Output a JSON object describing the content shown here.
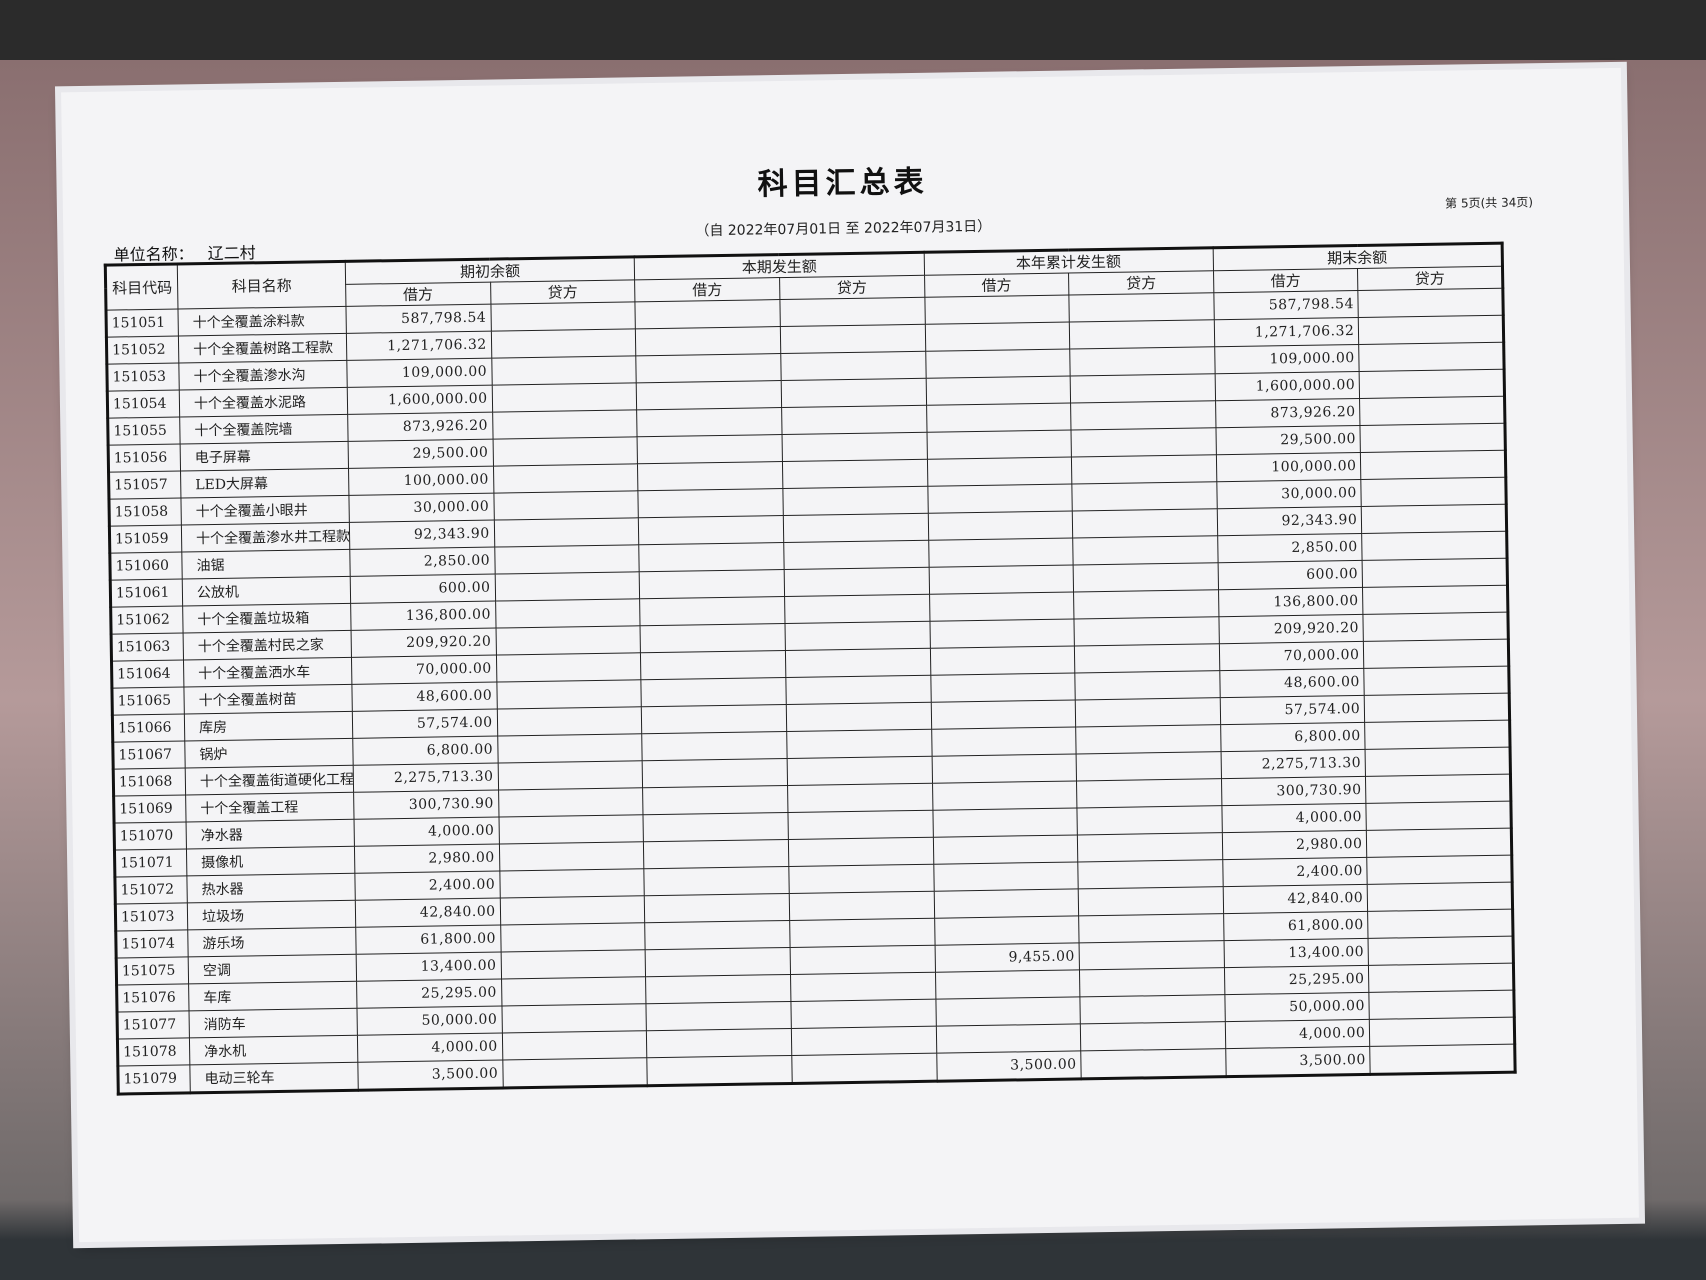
{
  "header": {
    "title": "科目汇总表",
    "unit_label": "单位名称：",
    "unit": "辽二村",
    "period": "（自 2022年07月01日 至 2022年07月31日）",
    "page": "第 5页(共 34页)"
  },
  "table": {
    "columns": [
      "科目代码",
      "科目名称"
    ],
    "groups": [
      "期初余额",
      "本期发生额",
      "本年累计发生额",
      "期末余额"
    ],
    "subcolumns": [
      "借方",
      "贷方"
    ],
    "rows": [
      [
        "151051",
        "十个全覆盖涂料款",
        "587,798.54",
        null,
        null,
        null,
        null,
        null,
        "587,798.54",
        null
      ],
      [
        "151052",
        "十个全覆盖树路工程款",
        "1,271,706.32",
        null,
        null,
        null,
        null,
        null,
        "1,271,706.32",
        null
      ],
      [
        "151053",
        "十个全覆盖渗水沟",
        "109,000.00",
        null,
        null,
        null,
        null,
        null,
        "109,000.00",
        null
      ],
      [
        "151054",
        "十个全覆盖水泥路",
        "1,600,000.00",
        null,
        null,
        null,
        null,
        null,
        "1,600,000.00",
        null
      ],
      [
        "151055",
        "十个全覆盖院墙",
        "873,926.20",
        null,
        null,
        null,
        null,
        null,
        "873,926.20",
        null
      ],
      [
        "151056",
        "电子屏幕",
        "29,500.00",
        null,
        null,
        null,
        null,
        null,
        "29,500.00",
        null
      ],
      [
        "151057",
        "LED大屏幕",
        "100,000.00",
        null,
        null,
        null,
        null,
        null,
        "100,000.00",
        null
      ],
      [
        "151058",
        "十个全覆盖小眼井",
        "30,000.00",
        null,
        null,
        null,
        null,
        null,
        "30,000.00",
        null
      ],
      [
        "151059",
        "十个全覆盖渗水井工程款",
        "92,343.90",
        null,
        null,
        null,
        null,
        null,
        "92,343.90",
        null
      ],
      [
        "151060",
        "油锯",
        "2,850.00",
        null,
        null,
        null,
        null,
        null,
        "2,850.00",
        null
      ],
      [
        "151061",
        "公放机",
        "600.00",
        null,
        null,
        null,
        null,
        null,
        "600.00",
        null
      ],
      [
        "151062",
        "十个全覆盖垃圾箱",
        "136,800.00",
        null,
        null,
        null,
        null,
        null,
        "136,800.00",
        null
      ],
      [
        "151063",
        "十个全覆盖村民之家",
        "209,920.20",
        null,
        null,
        null,
        null,
        null,
        "209,920.20",
        null
      ],
      [
        "151064",
        "十个全覆盖洒水车",
        "70,000.00",
        null,
        null,
        null,
        null,
        null,
        "70,000.00",
        null
      ],
      [
        "151065",
        "十个全覆盖树苗",
        "48,600.00",
        null,
        null,
        null,
        null,
        null,
        "48,600.00",
        null
      ],
      [
        "151066",
        "库房",
        "57,574.00",
        null,
        null,
        null,
        null,
        null,
        "57,574.00",
        null
      ],
      [
        "151067",
        "锅炉",
        "6,800.00",
        null,
        null,
        null,
        null,
        null,
        "6,800.00",
        null
      ],
      [
        "151068",
        "十个全覆盖街道硬化工程",
        "2,275,713.30",
        null,
        null,
        null,
        null,
        null,
        "2,275,713.30",
        null
      ],
      [
        "151069",
        "十个全覆盖工程",
        "300,730.90",
        null,
        null,
        null,
        null,
        null,
        "300,730.90",
        null
      ],
      [
        "151070",
        "净水器",
        "4,000.00",
        null,
        null,
        null,
        null,
        null,
        "4,000.00",
        null
      ],
      [
        "151071",
        "摄像机",
        "2,980.00",
        null,
        null,
        null,
        null,
        null,
        "2,980.00",
        null
      ],
      [
        "151072",
        "热水器",
        "2,400.00",
        null,
        null,
        null,
        null,
        null,
        "2,400.00",
        null
      ],
      [
        "151073",
        "垃圾场",
        "42,840.00",
        null,
        null,
        null,
        null,
        null,
        "42,840.00",
        null
      ],
      [
        "151074",
        "游乐场",
        "61,800.00",
        null,
        null,
        null,
        null,
        null,
        "61,800.00",
        null
      ],
      [
        "151075",
        "空调",
        "13,400.00",
        null,
        null,
        null,
        "9,455.00",
        null,
        "13,400.00",
        null
      ],
      [
        "151076",
        "车库",
        "25,295.00",
        null,
        null,
        null,
        null,
        null,
        "25,295.00",
        null
      ],
      [
        "151077",
        "消防车",
        "50,000.00",
        null,
        null,
        null,
        null,
        null,
        "50,000.00",
        null
      ],
      [
        "151078",
        "净水机",
        "4,000.00",
        null,
        null,
        null,
        null,
        null,
        "4,000.00",
        null
      ],
      [
        "151079",
        "电动三轮车",
        "3,500.00",
        null,
        null,
        null,
        "3,500.00",
        null,
        "3,500.00",
        null
      ]
    ]
  }
}
